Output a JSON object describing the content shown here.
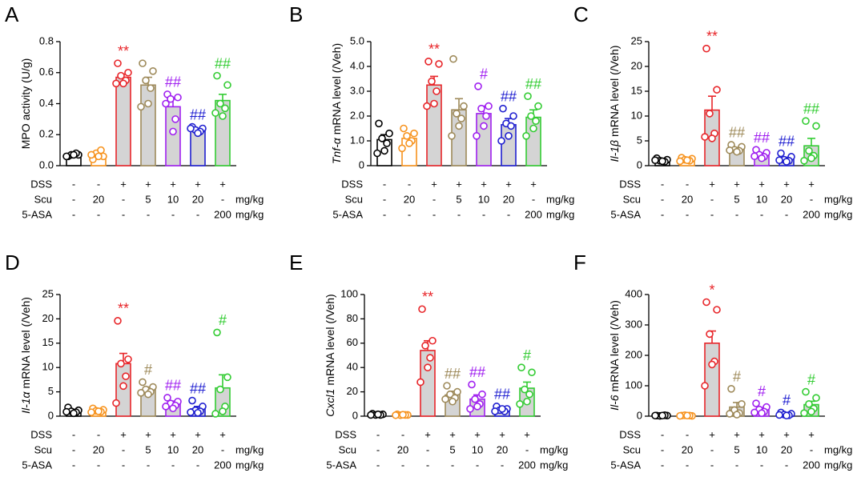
{
  "group_colors": [
    "#000000",
    "#f7931e",
    "#e8262a",
    "#9e8a5a",
    "#a020f0",
    "#1f1fd0",
    "#33cc33"
  ],
  "group_fills": [
    "#ffffff",
    "#ffffff",
    "#d4d4d4",
    "#d4d4d4",
    "#d4d4d4",
    "#d4d4d4",
    "#d4d4d4"
  ],
  "treatments": {
    "unit": "mg/kg",
    "rows": [
      {
        "label": "DSS",
        "cells": [
          "-",
          "-",
          "+",
          "+",
          "+",
          "+",
          "+"
        ]
      },
      {
        "label": "Scu",
        "cells": [
          "-",
          "20",
          "-",
          "5",
          "10",
          "20",
          "-"
        ]
      },
      {
        "label": "5-ASA",
        "cells": [
          "-",
          "-",
          "-",
          "-",
          "-",
          "-",
          "200"
        ]
      }
    ]
  },
  "chart_data": [
    {
      "type": "bar",
      "panel": "A",
      "ylabel": "MPO activity (U/g)",
      "ylim": [
        0,
        0.8
      ],
      "yticks": [
        {
          "value": 0,
          "label": "0.0"
        },
        0.2,
        0.4,
        0.6,
        0.8
      ],
      "values": [
        0.07,
        0.07,
        0.57,
        0.52,
        0.38,
        0.23,
        0.42
      ],
      "errors": [
        0.01,
        0.015,
        0.02,
        0.05,
        0.05,
        0.01,
        0.04
      ],
      "points": [
        [
          0.06,
          0.07,
          0.07,
          0.08,
          0.07,
          0.06
        ],
        [
          0.04,
          0.06,
          0.08,
          0.1,
          0.06,
          0.07
        ],
        [
          0.66,
          0.6,
          0.58,
          0.55,
          0.53,
          0.53
        ],
        [
          0.66,
          0.61,
          0.55,
          0.5,
          0.4,
          0.38
        ],
        [
          0.46,
          0.44,
          0.43,
          0.3,
          0.22,
          0.4
        ],
        [
          0.25,
          0.24,
          0.23,
          0.22,
          0.21,
          0.24
        ],
        [
          0.58,
          0.52,
          0.4,
          0.37,
          0.32,
          0.34
        ]
      ],
      "annotations": [
        null,
        null,
        "**",
        null,
        "##",
        "##",
        "##"
      ]
    },
    {
      "type": "bar",
      "panel": "B",
      "ylabel_gene": "Tnf-α",
      "ylabel": "mRNA level (/Veh)",
      "ylim": [
        0,
        5
      ],
      "yticks": [
        0,
        {
          "value": 1,
          "label": "1.0"
        },
        {
          "value": 2,
          "label": "2.0"
        },
        {
          "value": 3,
          "label": "3.0"
        },
        {
          "value": 4,
          "label": "4.0"
        },
        {
          "value": 5,
          "label": "5.0"
        }
      ],
      "values": [
        1.05,
        1.1,
        3.25,
        2.25,
        2.1,
        1.65,
        1.95
      ],
      "errors": [
        0.2,
        0.15,
        0.35,
        0.45,
        0.3,
        0.25,
        0.3
      ],
      "points": [
        [
          1.7,
          1.3,
          1.1,
          0.9,
          0.6,
          0.5
        ],
        [
          1.5,
          1.3,
          1.2,
          1.0,
          0.9,
          0.7
        ],
        [
          4.2,
          4.1,
          3.4,
          3.0,
          2.5,
          2.4
        ],
        [
          4.3,
          2.4,
          2.1,
          1.9,
          1.6,
          1.2
        ],
        [
          3.2,
          2.4,
          2.3,
          2.0,
          1.6,
          1.2
        ],
        [
          2.3,
          2.0,
          1.7,
          1.6,
          1.2,
          1.0
        ],
        [
          2.8,
          2.4,
          2.0,
          1.8,
          1.5,
          1.2
        ]
      ],
      "annotations": [
        null,
        null,
        "**",
        null,
        "#",
        "##",
        "##"
      ]
    },
    {
      "type": "bar",
      "panel": "C",
      "ylabel_gene": "Il-1β",
      "ylabel": "mRNA level (/Veh)",
      "ylim": [
        0,
        25
      ],
      "yticks": [
        0,
        5,
        10,
        15,
        20,
        25
      ],
      "values": [
        1.0,
        1.2,
        11.2,
        3.3,
        2.2,
        1.4,
        4.0
      ],
      "errors": [
        0.2,
        0.2,
        2.8,
        0.4,
        0.3,
        0.3,
        1.5
      ],
      "points": [
        [
          1.5,
          1.2,
          1.0,
          0.8,
          0.9,
          1.1
        ],
        [
          1.6,
          1.4,
          1.2,
          1.0,
          1.1,
          0.9
        ],
        [
          23.6,
          15.3,
          10.5,
          6.5,
          5.5,
          5.8
        ],
        [
          4.2,
          3.8,
          3.2,
          3.0,
          2.8,
          3.1
        ],
        [
          3.2,
          2.6,
          2.2,
          1.8,
          1.5,
          1.9
        ],
        [
          2.5,
          1.8,
          1.2,
          1.0,
          0.8,
          1.1
        ],
        [
          9,
          8,
          3,
          2,
          1.5,
          1
        ]
      ],
      "annotations": [
        null,
        null,
        "**",
        "##",
        "##",
        "##",
        "##"
      ]
    },
    {
      "type": "bar",
      "panel": "D",
      "ylabel_gene": "Il-1α",
      "ylabel": "mRNA level (/Veh)",
      "ylim": [
        0,
        25
      ],
      "yticks": [
        0,
        5,
        10,
        15,
        20,
        25
      ],
      "values": [
        1.1,
        1.2,
        10.8,
        5.4,
        2.6,
        1.5,
        5.8
      ],
      "errors": [
        0.3,
        0.2,
        2.1,
        0.6,
        0.5,
        0.5,
        2.7
      ],
      "points": [
        [
          1.8,
          1.2,
          1.0,
          0.8,
          0.6,
          0.9
        ],
        [
          1.6,
          1.3,
          1.1,
          0.9,
          1.0,
          0.8
        ],
        [
          19.6,
          11.7,
          10.8,
          8.2,
          6.2,
          2.7
        ],
        [
          7.0,
          6.0,
          5.5,
          5.0,
          4.5,
          4.8
        ],
        [
          3.8,
          3.0,
          2.6,
          2.2,
          1.6,
          2.0
        ],
        [
          3.2,
          2.0,
          1.2,
          1.0,
          0.7,
          0.8
        ],
        [
          17.2,
          8.0,
          5.5,
          2.0,
          1.0,
          0.5
        ]
      ],
      "annotations": [
        null,
        null,
        "**",
        "#",
        "##",
        "##",
        "#"
      ]
    },
    {
      "type": "bar",
      "panel": "E",
      "ylabel_gene": "Cxcl1",
      "ylabel": "mRNA level (/Veh)",
      "ylim": [
        0,
        100
      ],
      "yticks": [
        0,
        20,
        40,
        60,
        80,
        100
      ],
      "values": [
        1.5,
        1.0,
        54,
        17.5,
        14,
        5.5,
        23
      ],
      "errors": [
        0.3,
        0.2,
        8,
        3,
        3.5,
        1.2,
        5
      ],
      "points": [
        [
          2,
          1.5,
          1,
          1,
          1.5,
          1
        ],
        [
          1.5,
          1,
          0.8,
          1,
          1.2,
          0.8
        ],
        [
          88,
          62,
          58,
          48,
          40,
          28
        ],
        [
          25,
          20,
          18,
          15,
          12,
          14
        ],
        [
          26,
          18,
          14,
          10,
          8,
          6
        ],
        [
          8,
          6,
          5,
          4,
          6,
          4
        ],
        [
          40,
          36,
          22,
          18,
          12,
          10
        ]
      ],
      "annotations": [
        null,
        null,
        "**",
        "##",
        "##",
        "##",
        "#"
      ]
    },
    {
      "type": "bar",
      "panel": "F",
      "ylabel_gene": "Il-6",
      "ylabel": "mRNA level (/Veh)",
      "ylim": [
        0,
        400
      ],
      "yticks": [
        0,
        100,
        200,
        300,
        400
      ],
      "values": [
        2,
        2,
        240,
        30,
        22,
        6,
        38
      ],
      "errors": [
        0.5,
        0.5,
        40,
        15,
        6,
        2,
        11
      ],
      "points": [
        [
          2,
          2,
          1,
          3,
          2,
          2
        ],
        [
          2,
          1,
          3,
          2,
          2,
          1
        ],
        [
          375,
          350,
          270,
          180,
          170,
          100
        ],
        [
          90,
          40,
          20,
          10,
          5,
          8
        ],
        [
          42,
          30,
          22,
          15,
          10,
          12
        ],
        [
          12,
          8,
          5,
          3,
          2,
          4
        ],
        [
          80,
          60,
          40,
          25,
          15,
          10
        ]
      ],
      "annotations": [
        null,
        null,
        "*",
        "#",
        "#",
        "#",
        "#"
      ]
    }
  ]
}
